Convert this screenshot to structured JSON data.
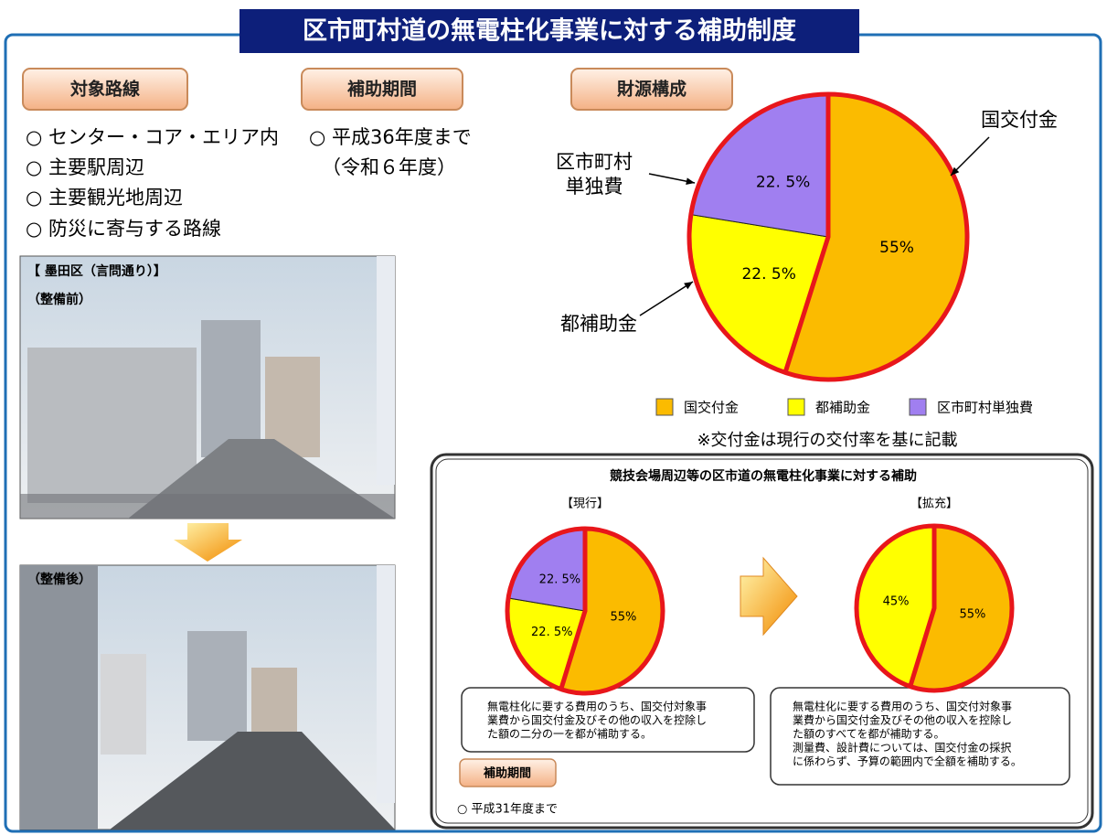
{
  "title": "区市町村道の無電柱化事業に対する補助制度",
  "target_routes": {
    "heading": "対象路線",
    "items": [
      "○ センター・コア・エリア内",
      "○ 主要駅周辺",
      "○ 主要観光地周辺",
      "○ 防災に寄与する路線"
    ]
  },
  "period": {
    "heading": "補助期間",
    "lines": [
      "○ 平成36年度まで",
      "（令和６年度）"
    ]
  },
  "photos": {
    "location": "【 墨田区（言問通り）】",
    "before": "（整備前）",
    "after": "（整備後）"
  },
  "funding": {
    "heading": "財源構成",
    "pie": {
      "type": "pie",
      "categories": [
        "国交付金",
        "都補助金",
        "区市町村単独費"
      ],
      "values": [
        55,
        22.5,
        22.5
      ],
      "value_labels": [
        "55%",
        "22. 5%",
        "22. 5%"
      ],
      "colors": [
        "#fbbb00",
        "#ffff00",
        "#a07ff0"
      ],
      "callouts": [
        [
          "国交付金"
        ],
        [
          "都補助金"
        ],
        [
          "区市町村",
          "単独費"
        ]
      ]
    },
    "note": "※交付金は現行の交付率を基に記載"
  },
  "olympic": {
    "title": "競技会場周辺等の区市道の無電柱化事業に対する補助",
    "current": {
      "label": "【現行】",
      "type": "pie",
      "values": [
        55,
        22.5,
        22.5
      ],
      "value_labels": [
        "55%",
        "22. 5%",
        "22. 5%"
      ],
      "colors": [
        "#fbbb00",
        "#ffff00",
        "#a07ff0"
      ],
      "text": [
        "無電柱化に要する費用のうち、国交付対象事",
        "業費から国交付金及びその他の収入を控除し",
        "た額の二分の一を都が補助する。"
      ]
    },
    "expanded": {
      "label": "【拡充】",
      "type": "pie",
      "values": [
        55,
        45
      ],
      "value_labels": [
        "55%",
        "45%"
      ],
      "colors": [
        "#fbbb00",
        "#ffff00"
      ],
      "text": [
        "無電柱化に要する費用のうち、国交付対象事",
        "業費から国交付金及びその他の収入を控除し",
        "た額のすべてを都が補助する。",
        "測量費、設計費については、国交付金の採択",
        "に係わらず、予算の範囲内で全額を補助する。"
      ]
    },
    "period": {
      "heading": "補助期間",
      "line": "○ 平成31年度まで"
    }
  }
}
